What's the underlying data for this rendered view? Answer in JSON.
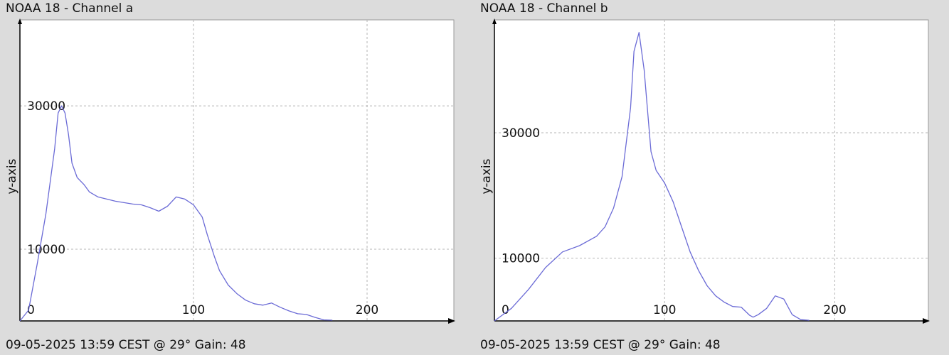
{
  "chart_data": [
    {
      "type": "line",
      "title": "NOAA 18 - Channel a",
      "footer": "09-05-2025 13:59 CEST @ 29° Gain: 48",
      "xlabel": "",
      "ylabel": "y-axis",
      "xlim": [
        0,
        250
      ],
      "ylim": [
        0,
        42000
      ],
      "x_ticks": [
        0,
        100,
        200
      ],
      "y_ticks": [
        10000,
        30000
      ],
      "grid": true,
      "line_color": "#6b6bd6",
      "series": [
        {
          "x": [
            0,
            5,
            10,
            15,
            20,
            22,
            24,
            26,
            28,
            30,
            33,
            37,
            40,
            45,
            50,
            55,
            60,
            65,
            70,
            75,
            80,
            85,
            90,
            95,
            100,
            105,
            108,
            112,
            115,
            120,
            125,
            130,
            135,
            140,
            145,
            150,
            155,
            160,
            165,
            170,
            175,
            180
          ],
          "y": [
            0,
            1500,
            8000,
            15000,
            24000,
            29000,
            30000,
            29000,
            26000,
            22000,
            20000,
            19000,
            18000,
            17300,
            17000,
            16700,
            16500,
            16300,
            16200,
            15800,
            15300,
            16000,
            17300,
            17000,
            16200,
            14500,
            12000,
            9000,
            7000,
            5000,
            3800,
            2900,
            2400,
            2200,
            2500,
            1900,
            1400,
            1000,
            900,
            500,
            150,
            100
          ]
        }
      ]
    },
    {
      "type": "line",
      "title": "NOAA 18 - Channel b",
      "footer": "09-05-2025 13:59 CEST @ 29° Gain: 48",
      "xlabel": "",
      "ylabel": "y-axis",
      "xlim": [
        0,
        255
      ],
      "ylim": [
        0,
        48000
      ],
      "x_ticks": [
        0,
        100,
        200
      ],
      "y_ticks": [
        10000,
        30000
      ],
      "grid": true,
      "line_color": "#6b6bd6",
      "series": [
        {
          "x": [
            0,
            10,
            20,
            30,
            40,
            50,
            60,
            65,
            70,
            75,
            80,
            82,
            85,
            88,
            92,
            95,
            100,
            105,
            110,
            115,
            120,
            125,
            130,
            135,
            140,
            145,
            150,
            152,
            155,
            160,
            165,
            170,
            175,
            180,
            185
          ],
          "y": [
            0,
            2000,
            5000,
            8500,
            11000,
            12000,
            13500,
            15000,
            18000,
            23000,
            34000,
            43000,
            46000,
            40000,
            27000,
            24000,
            22000,
            19000,
            15000,
            11000,
            8000,
            5600,
            4000,
            3000,
            2300,
            2200,
            900,
            600,
            1000,
            2000,
            4000,
            3500,
            1000,
            200,
            100
          ]
        }
      ]
    }
  ]
}
